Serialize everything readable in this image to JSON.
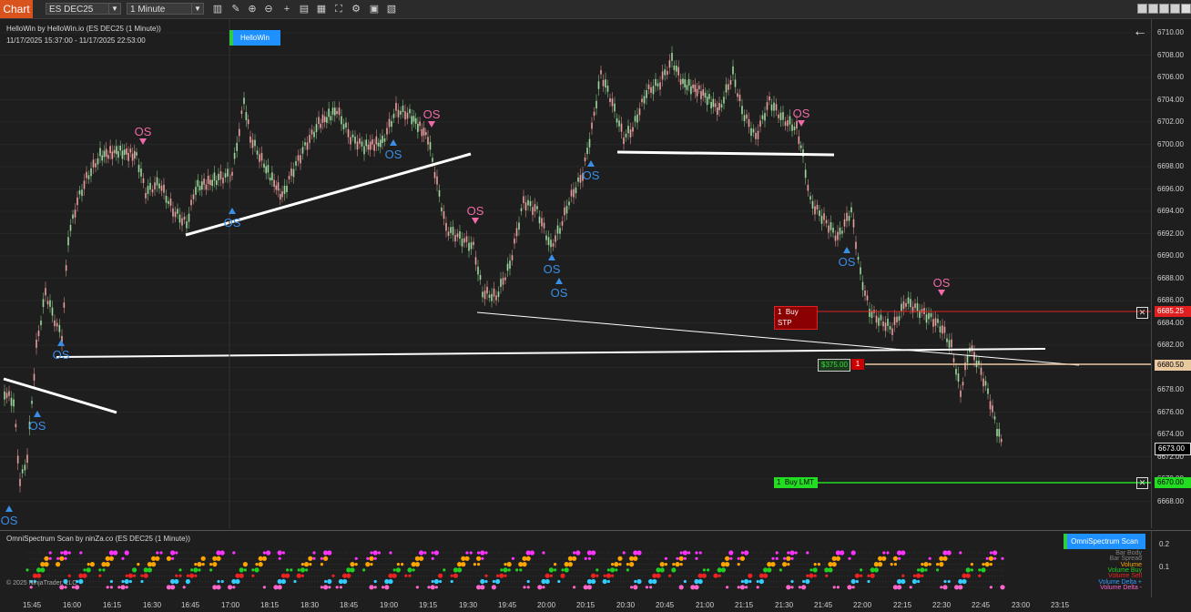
{
  "toolbar": {
    "tab_label": "Chart",
    "instrument": "ES DEC25",
    "interval": "1 Minute",
    "icons": [
      "bar-type-icon",
      "pencil-icon",
      "zoom-in-icon",
      "zoom-out-icon",
      "crosshair-icon",
      "data-box-icon",
      "properties-icon",
      "fit-icon",
      "strategy-icon",
      "template-icon",
      "indicators-icon"
    ],
    "window_icons": [
      "tile-icon",
      "restore-icon",
      "minimize-icon",
      "maximize-icon",
      "close-icon"
    ]
  },
  "chart": {
    "title": "HelloWin by HelloWin.io (ES DEC25 (1 Minute))",
    "range": "11/17/2025 15:37:00 - 11/17/2025 22:53:00",
    "badge": "HelloWin",
    "back_arrow": "←",
    "copyright": "© 2025 NinjaTrader, LLC",
    "signal_text": "OS",
    "price_ticks": [
      "6710.00",
      "6708.00",
      "6706.00",
      "6704.00",
      "6702.00",
      "6700.00",
      "6698.00",
      "6696.00",
      "6694.00",
      "6692.00",
      "6690.00",
      "6688.00",
      "6686.00",
      "6684.00",
      "6682.00",
      "6680.00",
      "6678.00",
      "6676.00",
      "6674.00",
      "6672.00",
      "6670.00",
      "6668.00"
    ],
    "time_ticks": [
      "15:45",
      "16:00",
      "16:15",
      "16:30",
      "16:45",
      "17:00",
      "18:15",
      "18:30",
      "18:45",
      "19:00",
      "19:15",
      "19:30",
      "19:45",
      "20:00",
      "20:15",
      "20:30",
      "20:45",
      "21:00",
      "21:15",
      "21:30",
      "21:45",
      "22:00",
      "22:15",
      "22:30",
      "22:45",
      "23:00",
      "23:15"
    ],
    "orders": {
      "stop": {
        "qty": "1",
        "label": "Buy STP",
        "price": "6685.25",
        "color": "#e02020"
      },
      "position": {
        "pnl": "$375.00",
        "qty": "1",
        "price": "6680.50",
        "color": "#e8c9a0"
      },
      "limit": {
        "qty": "1",
        "label": "Buy LMT",
        "price": "6670.00",
        "color": "#22dd22"
      },
      "last_price": "6673.00"
    }
  },
  "sub": {
    "title": "OmniSpectrum Scan by ninZa.co (ES DEC25 (1 Minute))",
    "badge": "OmniSpectrum Scan",
    "y_ticks": [
      "0.2",
      "0.1"
    ],
    "rows": [
      {
        "label": "Bar Body",
        "color": "#808080"
      },
      {
        "label": "Bar Spread",
        "color": "#808080"
      },
      {
        "label": "Volume",
        "color": "#ffa500"
      },
      {
        "label": "Volume Buy",
        "color": "#22cc22"
      },
      {
        "label": "Volume Sell",
        "color": "#ee2222"
      },
      {
        "label": "Volume Delta +",
        "color": "#3399ff"
      },
      {
        "label": "Volume Delta -",
        "color": "#ff66cc"
      }
    ]
  }
}
